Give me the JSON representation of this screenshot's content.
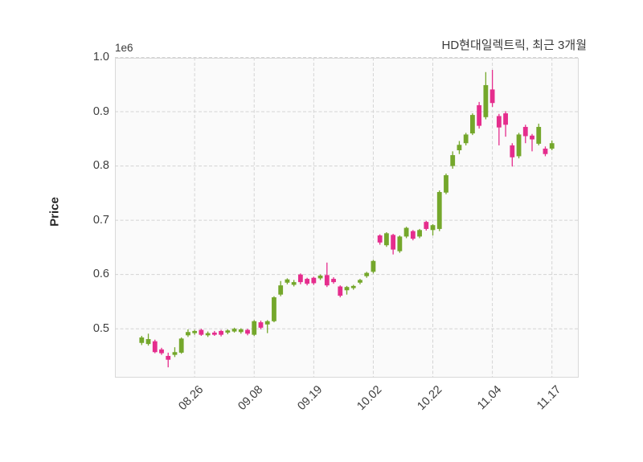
{
  "chart_data": {
    "type": "candlestick",
    "title": "HD현대일렉트릭, 최근 3개월",
    "ylabel": "Price",
    "y_offset_label": "1e6",
    "y_unit_multiplier": 1000000,
    "grid": "dashed-on",
    "legend_position": "none",
    "ylim": [
      0.41,
      1.0
    ],
    "y_ticks": [
      0.5,
      0.6,
      0.7,
      0.8,
      0.9,
      1.0
    ],
    "x_tick_labels": [
      "08.26",
      "09.08",
      "09.19",
      "10.02",
      "10.22",
      "11.04",
      "11.17"
    ],
    "x_tick_indices": [
      8,
      17,
      26,
      35,
      44,
      53,
      62
    ],
    "colors": {
      "up": "#74a72b",
      "down": "#e52d8d",
      "grid": "#d4d4d4",
      "frame": "#d9d9d9",
      "plot_bg": "#fafafa",
      "text": "#3d3d3d"
    },
    "ohlc_format": [
      "open",
      "high",
      "low",
      "close"
    ],
    "candles": [
      [
        0.474,
        0.487,
        0.47,
        0.484
      ],
      [
        0.472,
        0.491,
        0.469,
        0.481
      ],
      [
        0.477,
        0.48,
        0.455,
        0.457
      ],
      [
        0.462,
        0.465,
        0.452,
        0.455
      ],
      [
        0.45,
        0.456,
        0.429,
        0.443
      ],
      [
        0.452,
        0.466,
        0.448,
        0.457
      ],
      [
        0.456,
        0.484,
        0.454,
        0.482
      ],
      [
        0.488,
        0.499,
        0.485,
        0.494
      ],
      [
        0.492,
        0.498,
        0.489,
        0.496
      ],
      [
        0.498,
        0.5,
        0.487,
        0.489
      ],
      [
        0.488,
        0.495,
        0.485,
        0.492
      ],
      [
        0.493,
        0.496,
        0.487,
        0.489
      ],
      [
        0.496,
        0.498,
        0.486,
        0.489
      ],
      [
        0.493,
        0.499,
        0.49,
        0.497
      ],
      [
        0.495,
        0.502,
        0.493,
        0.5
      ],
      [
        0.494,
        0.501,
        0.491,
        0.499
      ],
      [
        0.498,
        0.5,
        0.488,
        0.491
      ],
      [
        0.489,
        0.516,
        0.487,
        0.514
      ],
      [
        0.512,
        0.515,
        0.499,
        0.502
      ],
      [
        0.508,
        0.516,
        0.492,
        0.514
      ],
      [
        0.514,
        0.56,
        0.512,
        0.558
      ],
      [
        0.563,
        0.588,
        0.56,
        0.58
      ],
      [
        0.585,
        0.593,
        0.582,
        0.591
      ],
      [
        0.581,
        0.59,
        0.578,
        0.586
      ],
      [
        0.6,
        0.602,
        0.582,
        0.586
      ],
      [
        0.592,
        0.594,
        0.58,
        0.583
      ],
      [
        0.594,
        0.596,
        0.581,
        0.584
      ],
      [
        0.593,
        0.6,
        0.59,
        0.598
      ],
      [
        0.599,
        0.622,
        0.577,
        0.58
      ],
      [
        0.592,
        0.595,
        0.583,
        0.586
      ],
      [
        0.578,
        0.58,
        0.558,
        0.561
      ],
      [
        0.571,
        0.579,
        0.563,
        0.577
      ],
      [
        0.575,
        0.581,
        0.572,
        0.579
      ],
      [
        0.585,
        0.592,
        0.582,
        0.59
      ],
      [
        0.597,
        0.605,
        0.594,
        0.603
      ],
      [
        0.605,
        0.627,
        0.602,
        0.625
      ],
      [
        0.672,
        0.674,
        0.655,
        0.659
      ],
      [
        0.654,
        0.678,
        0.651,
        0.676
      ],
      [
        0.673,
        0.675,
        0.637,
        0.646
      ],
      [
        0.643,
        0.672,
        0.64,
        0.67
      ],
      [
        0.67,
        0.688,
        0.667,
        0.686
      ],
      [
        0.68,
        0.682,
        0.663,
        0.666
      ],
      [
        0.67,
        0.684,
        0.667,
        0.682
      ],
      [
        0.697,
        0.699,
        0.681,
        0.684
      ],
      [
        0.682,
        0.693,
        0.672,
        0.691
      ],
      [
        0.684,
        0.755,
        0.68,
        0.752
      ],
      [
        0.751,
        0.786,
        0.748,
        0.783
      ],
      [
        0.8,
        0.827,
        0.795,
        0.82
      ],
      [
        0.829,
        0.846,
        0.822,
        0.839
      ],
      [
        0.842,
        0.861,
        0.838,
        0.858
      ],
      [
        0.86,
        0.897,
        0.857,
        0.894
      ],
      [
        0.912,
        0.918,
        0.869,
        0.874
      ],
      [
        0.89,
        0.973,
        0.886,
        0.949
      ],
      [
        0.941,
        0.977,
        0.909,
        0.916
      ],
      [
        0.892,
        0.896,
        0.838,
        0.871
      ],
      [
        0.897,
        0.901,
        0.854,
        0.876
      ],
      [
        0.838,
        0.842,
        0.799,
        0.816
      ],
      [
        0.818,
        0.861,
        0.814,
        0.858
      ],
      [
        0.872,
        0.876,
        0.842,
        0.855
      ],
      [
        0.856,
        0.859,
        0.827,
        0.849
      ],
      [
        0.841,
        0.878,
        0.838,
        0.872
      ],
      [
        0.832,
        0.836,
        0.818,
        0.822
      ],
      [
        0.832,
        0.847,
        0.829,
        0.842
      ]
    ]
  }
}
